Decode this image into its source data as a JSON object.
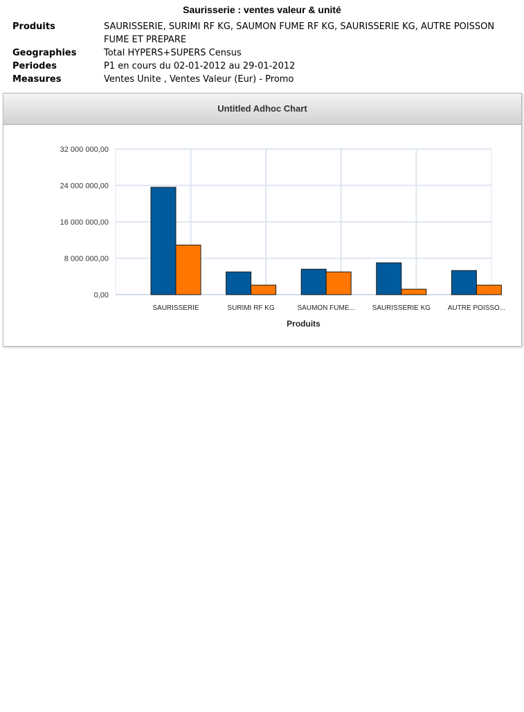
{
  "report": {
    "title": "Saurisserie : ventes valeur & unité"
  },
  "meta": [
    {
      "label": "Produits",
      "value": "SAURISSERIE, SURIMI RF KG, SAUMON FUME RF KG, SAURISSERIE KG, AUTRE POISSON FUME ET PREPARE"
    },
    {
      "label": "Geographies",
      "value": "Total HYPERS+SUPERS Census"
    },
    {
      "label": "Periodes",
      "value": "P1 en cours du 02-01-2012 au 29-01-2012"
    },
    {
      "label": "Measures",
      "value": "Ventes Unite , Ventes Valeur (Eur) - Promo"
    }
  ],
  "chart_data": {
    "type": "bar",
    "title": "Untitled Adhoc Chart",
    "xlabel": "Produits",
    "ylabel": "",
    "categories": [
      "SAURISSERIE",
      "SURIMI RF KG",
      "SAUMON FUME...",
      "SAURISSERIE KG",
      "AUTRE POISSO..."
    ],
    "series": [
      {
        "color": "#005a9c",
        "values": [
          23600000,
          5000000,
          5600000,
          7000000,
          5300000
        ]
      },
      {
        "color": "#ff7700",
        "values": [
          10900000,
          2100000,
          5000000,
          1200000,
          2100000
        ]
      }
    ],
    "ylim": [
      0,
      32000000
    ],
    "yticks": [
      0,
      8000000,
      16000000,
      24000000,
      32000000
    ],
    "ytick_labels": [
      "0,00",
      "8 000 000,00",
      "16 000 000,00",
      "24 000 000,00",
      "32 000 000,00"
    ],
    "grid": true,
    "legend": "none"
  }
}
